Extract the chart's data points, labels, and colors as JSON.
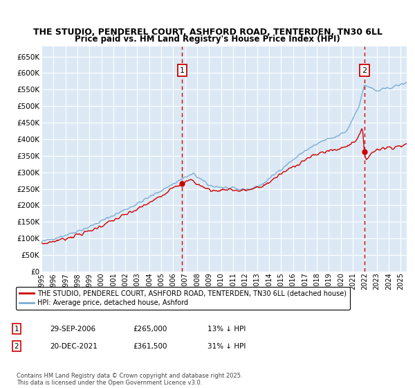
{
  "title": "THE STUDIO, PENDEREL COURT, ASHFORD ROAD, TENTERDEN, TN30 6LL",
  "subtitle": "Price paid vs. HM Land Registry's House Price Index (HPI)",
  "ylabel_ticks": [
    0,
    50000,
    100000,
    150000,
    200000,
    250000,
    300000,
    350000,
    400000,
    450000,
    500000,
    550000,
    600000,
    650000
  ],
  "ylim": [
    0,
    680000
  ],
  "xlim_start": 1995.0,
  "xlim_end": 2025.5,
  "sale1_x": 2006.75,
  "sale1_y": 265000,
  "sale2_x": 2021.97,
  "sale2_y": 361500,
  "red_line_color": "#cc0000",
  "blue_line_color": "#7aadd4",
  "plot_bg_color": "#dce9f5",
  "grid_color": "#c8d8e8",
  "legend_line1": "THE STUDIO, PENDEREL COURT, ASHFORD ROAD, TENTERDEN, TN30 6LL (detached house)",
  "legend_line2": "HPI: Average price, detached house, Ashford",
  "table_row1": [
    "1",
    "29-SEP-2006",
    "£265,000",
    "13% ↓ HPI"
  ],
  "table_row2": [
    "2",
    "20-DEC-2021",
    "£361,500",
    "31% ↓ HPI"
  ],
  "footnote": "Contains HM Land Registry data © Crown copyright and database right 2025.\nThis data is licensed under the Open Government Licence v3.0.",
  "marker_box_color": "#cc0000"
}
